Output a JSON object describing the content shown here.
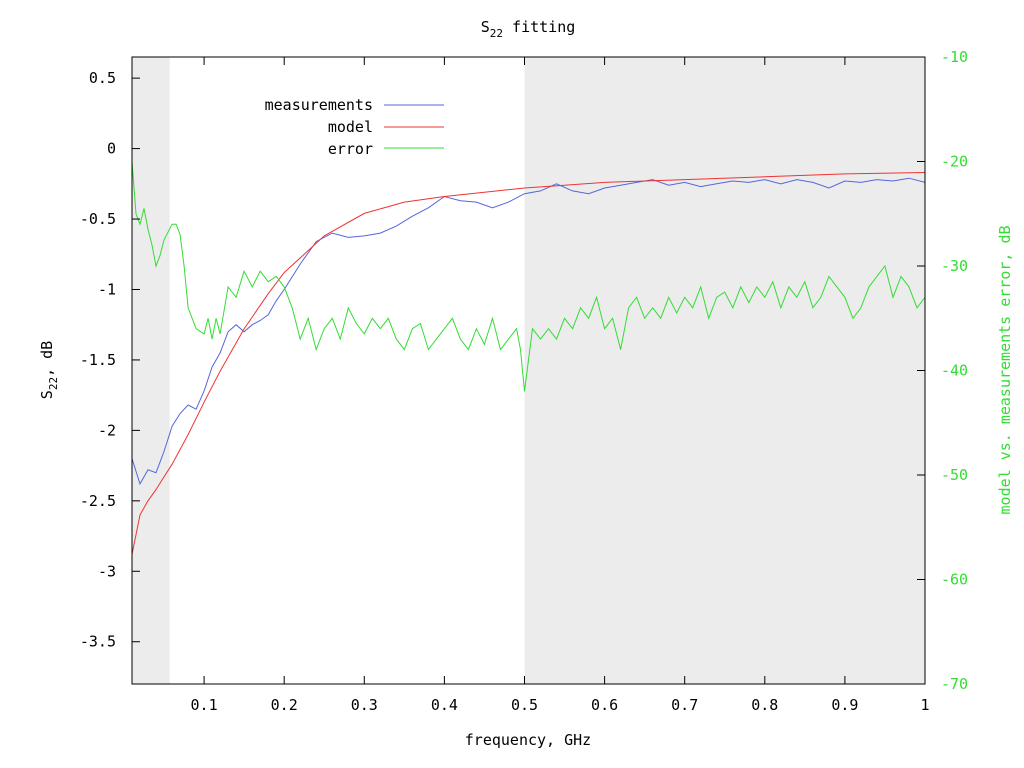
{
  "chart_data": {
    "type": "line",
    "title": "S",
    "title_subscript": "22",
    "title_suffix": " fitting",
    "xlabel": "frequency, GHz",
    "ylabel_main": "S",
    "ylabel_sub": "22",
    "ylabel_suffix": ", dB",
    "y2label": "model vs. measurements error, dB",
    "xlim": [
      0.01,
      1.0
    ],
    "ylim": [
      -3.8,
      0.65
    ],
    "y2lim": [
      -70,
      -10
    ],
    "x_ticks": [
      "0.1",
      "0.2",
      "0.3",
      "0.4",
      "0.5",
      "0.6",
      "0.7",
      "0.8",
      "0.9",
      "1"
    ],
    "x_tick_values": [
      0.1,
      0.2,
      0.3,
      0.4,
      0.5,
      0.6,
      0.7,
      0.8,
      0.9,
      1.0
    ],
    "y_ticks": [
      "0.5",
      "0",
      "-0.5",
      "-1",
      "-1.5",
      "-2",
      "-2.5",
      "-3",
      "-3.5"
    ],
    "y_tick_values": [
      0.5,
      0,
      -0.5,
      -1,
      -1.5,
      -2,
      -2.5,
      -3,
      -3.5
    ],
    "y2_ticks": [
      "-10",
      "-20",
      "-30",
      "-40",
      "-50",
      "-60",
      "-70"
    ],
    "y2_tick_values": [
      -10,
      -20,
      -30,
      -40,
      -50,
      -60,
      -70
    ],
    "shaded_regions": [
      [
        0.01,
        0.057
      ],
      [
        0.5,
        1.0
      ]
    ],
    "legend": "top-left",
    "grid": false,
    "colors": {
      "measurements": "#5566dd",
      "model": "#ee3333",
      "error": "#33dd33",
      "shade": "#ececec",
      "y2_axis": "#33dd33",
      "axis": "#000000"
    },
    "series": [
      {
        "name": "measurements",
        "axis": "left",
        "x": [
          0.01,
          0.02,
          0.03,
          0.04,
          0.05,
          0.06,
          0.07,
          0.08,
          0.09,
          0.1,
          0.11,
          0.12,
          0.13,
          0.14,
          0.15,
          0.16,
          0.17,
          0.18,
          0.19,
          0.2,
          0.22,
          0.24,
          0.26,
          0.28,
          0.3,
          0.32,
          0.34,
          0.36,
          0.38,
          0.4,
          0.42,
          0.44,
          0.46,
          0.48,
          0.5,
          0.52,
          0.54,
          0.56,
          0.58,
          0.6,
          0.62,
          0.64,
          0.66,
          0.68,
          0.7,
          0.72,
          0.74,
          0.76,
          0.78,
          0.8,
          0.82,
          0.84,
          0.86,
          0.88,
          0.9,
          0.92,
          0.94,
          0.96,
          0.98,
          1.0
        ],
        "y": [
          -2.2,
          -2.38,
          -2.28,
          -2.3,
          -2.15,
          -1.97,
          -1.88,
          -1.82,
          -1.85,
          -1.72,
          -1.55,
          -1.45,
          -1.3,
          -1.25,
          -1.3,
          -1.25,
          -1.22,
          -1.18,
          -1.08,
          -1.0,
          -0.82,
          -0.66,
          -0.6,
          -0.63,
          -0.62,
          -0.6,
          -0.55,
          -0.48,
          -0.42,
          -0.34,
          -0.37,
          -0.38,
          -0.42,
          -0.38,
          -0.32,
          -0.3,
          -0.25,
          -0.3,
          -0.32,
          -0.28,
          -0.26,
          -0.24,
          -0.22,
          -0.26,
          -0.24,
          -0.27,
          -0.25,
          -0.23,
          -0.24,
          -0.22,
          -0.25,
          -0.22,
          -0.24,
          -0.28,
          -0.23,
          -0.24,
          -0.22,
          -0.23,
          -0.21,
          -0.24
        ]
      },
      {
        "name": "model",
        "axis": "left",
        "x": [
          0.01,
          0.02,
          0.03,
          0.04,
          0.05,
          0.06,
          0.08,
          0.1,
          0.12,
          0.15,
          0.18,
          0.2,
          0.25,
          0.3,
          0.35,
          0.4,
          0.45,
          0.5,
          0.55,
          0.6,
          0.7,
          0.8,
          0.9,
          1.0
        ],
        "y": [
          -2.88,
          -2.6,
          -2.5,
          -2.42,
          -2.33,
          -2.24,
          -2.03,
          -1.8,
          -1.58,
          -1.28,
          -1.03,
          -0.88,
          -0.62,
          -0.46,
          -0.38,
          -0.34,
          -0.31,
          -0.28,
          -0.26,
          -0.24,
          -0.22,
          -0.2,
          -0.18,
          -0.17
        ]
      },
      {
        "name": "error",
        "axis": "right",
        "x": [
          0.01,
          0.015,
          0.02,
          0.025,
          0.03,
          0.035,
          0.04,
          0.045,
          0.05,
          0.06,
          0.065,
          0.07,
          0.075,
          0.08,
          0.09,
          0.1,
          0.105,
          0.11,
          0.115,
          0.12,
          0.13,
          0.14,
          0.15,
          0.16,
          0.17,
          0.18,
          0.19,
          0.2,
          0.21,
          0.22,
          0.23,
          0.24,
          0.25,
          0.26,
          0.27,
          0.28,
          0.29,
          0.3,
          0.31,
          0.32,
          0.33,
          0.34,
          0.35,
          0.36,
          0.37,
          0.38,
          0.39,
          0.4,
          0.41,
          0.42,
          0.43,
          0.44,
          0.45,
          0.46,
          0.47,
          0.48,
          0.49,
          0.495,
          0.5,
          0.51,
          0.52,
          0.53,
          0.54,
          0.55,
          0.56,
          0.57,
          0.58,
          0.59,
          0.6,
          0.61,
          0.62,
          0.63,
          0.64,
          0.65,
          0.66,
          0.67,
          0.68,
          0.69,
          0.7,
          0.71,
          0.72,
          0.73,
          0.74,
          0.75,
          0.76,
          0.77,
          0.78,
          0.79,
          0.8,
          0.81,
          0.82,
          0.83,
          0.84,
          0.85,
          0.86,
          0.87,
          0.88,
          0.89,
          0.9,
          0.91,
          0.92,
          0.93,
          0.94,
          0.95,
          0.96,
          0.97,
          0.98,
          0.99,
          1.0
        ],
        "y": [
          -20,
          -25,
          -26,
          -24.5,
          -26.5,
          -28,
          -30,
          -29,
          -27.5,
          -26,
          -26,
          -27,
          -30,
          -34,
          -36,
          -36.5,
          -35,
          -37,
          -35,
          -36.5,
          -32,
          -33,
          -30.5,
          -32,
          -30.5,
          -31.5,
          -31,
          -32,
          -34,
          -37,
          -35,
          -38,
          -36,
          -35,
          -37,
          -34,
          -35.5,
          -36.5,
          -35,
          -36,
          -35,
          -37,
          -38,
          -36,
          -35.5,
          -38,
          -37,
          -36,
          -35,
          -37,
          -38,
          -36,
          -37.5,
          -35,
          -38,
          -37,
          -36,
          -38,
          -42,
          -36,
          -37,
          -36,
          -37,
          -35,
          -36,
          -34,
          -35,
          -33,
          -36,
          -35,
          -38,
          -34,
          -33,
          -35,
          -34,
          -35,
          -33,
          -34.5,
          -33,
          -34,
          -32,
          -35,
          -33,
          -32.5,
          -34,
          -32,
          -33.5,
          -32,
          -33,
          -31.5,
          -34,
          -32,
          -33,
          -31.5,
          -34,
          -33,
          -31,
          -32,
          -33,
          -35,
          -34,
          -32,
          -31,
          -30,
          -33,
          -31,
          -32,
          -34,
          -33
        ]
      }
    ]
  }
}
